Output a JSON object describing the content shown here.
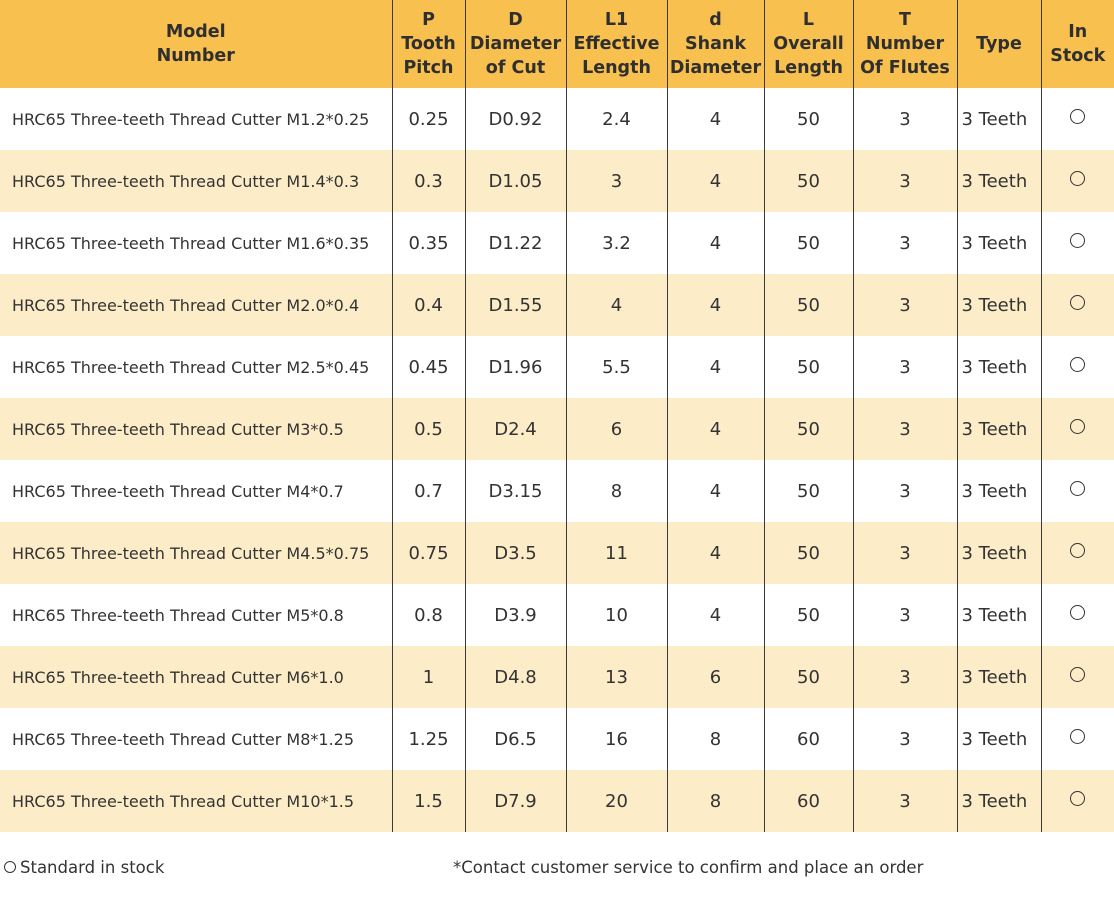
{
  "table": {
    "headers": [
      {
        "lines": [
          "Model",
          "Number"
        ]
      },
      {
        "lines": [
          "P",
          "Tooth",
          "Pitch"
        ]
      },
      {
        "lines": [
          "D",
          "Diameter",
          "of Cut"
        ]
      },
      {
        "lines": [
          "L1",
          "Effective",
          "Length"
        ]
      },
      {
        "lines": [
          "d",
          "Shank",
          "Diameter"
        ]
      },
      {
        "lines": [
          "L",
          "Overall",
          "Length"
        ]
      },
      {
        "lines": [
          "T",
          "Number",
          "Of Flutes"
        ]
      },
      {
        "lines": [
          "Type"
        ]
      },
      {
        "lines": [
          "In",
          "Stock"
        ]
      }
    ],
    "rows": [
      {
        "model": "HRC65 Three-teeth Thread Cutter M1.2*0.25",
        "pitch": "0.25",
        "diameter": "D0.92",
        "effective_length": "2.4",
        "shank": "4",
        "overall": "50",
        "flutes": "3",
        "type": "3 Teeth",
        "stock": "standard"
      },
      {
        "model": "HRC65 Three-teeth Thread Cutter M1.4*0.3",
        "pitch": "0.3",
        "diameter": "D1.05",
        "effective_length": "3",
        "shank": "4",
        "overall": "50",
        "flutes": "3",
        "type": "3 Teeth",
        "stock": "standard"
      },
      {
        "model": "HRC65 Three-teeth Thread Cutter M1.6*0.35",
        "pitch": "0.35",
        "diameter": "D1.22",
        "effective_length": "3.2",
        "shank": "4",
        "overall": "50",
        "flutes": "3",
        "type": "3 Teeth",
        "stock": "standard"
      },
      {
        "model": "HRC65 Three-teeth Thread Cutter M2.0*0.4",
        "pitch": "0.4",
        "diameter": "D1.55",
        "effective_length": "4",
        "shank": "4",
        "overall": "50",
        "flutes": "3",
        "type": "3 Teeth",
        "stock": "standard"
      },
      {
        "model": "HRC65 Three-teeth Thread Cutter M2.5*0.45",
        "pitch": "0.45",
        "diameter": "D1.96",
        "effective_length": "5.5",
        "shank": "4",
        "overall": "50",
        "flutes": "3",
        "type": "3 Teeth",
        "stock": "standard"
      },
      {
        "model": "HRC65 Three-teeth Thread Cutter M3*0.5",
        "pitch": "0.5",
        "diameter": "D2.4",
        "effective_length": "6",
        "shank": "4",
        "overall": "50",
        "flutes": "3",
        "type": "3 Teeth",
        "stock": "standard"
      },
      {
        "model": "HRC65 Three-teeth Thread Cutter M4*0.7",
        "pitch": "0.7",
        "diameter": "D3.15",
        "effective_length": "8",
        "shank": "4",
        "overall": "50",
        "flutes": "3",
        "type": "3 Teeth",
        "stock": "standard"
      },
      {
        "model": "HRC65 Three-teeth Thread Cutter M4.5*0.75",
        "pitch": "0.75",
        "diameter": "D3.5",
        "effective_length": "11",
        "shank": "4",
        "overall": "50",
        "flutes": "3",
        "type": "3 Teeth",
        "stock": "standard"
      },
      {
        "model": "HRC65 Three-teeth Thread Cutter M5*0.8",
        "pitch": "0.8",
        "diameter": "D3.9",
        "effective_length": "10",
        "shank": "4",
        "overall": "50",
        "flutes": "3",
        "type": "3 Teeth",
        "stock": "standard"
      },
      {
        "model": "HRC65 Three-teeth Thread Cutter M6*1.0",
        "pitch": "1",
        "diameter": "D4.8",
        "effective_length": "13",
        "shank": "6",
        "overall": "50",
        "flutes": "3",
        "type": "3 Teeth",
        "stock": "standard"
      },
      {
        "model": "HRC65 Three-teeth Thread Cutter M8*1.25",
        "pitch": "1.25",
        "diameter": "D6.5",
        "effective_length": "16",
        "shank": "8",
        "overall": "60",
        "flutes": "3",
        "type": "3 Teeth",
        "stock": "standard"
      },
      {
        "model": "HRC65 Three-teeth Thread Cutter M10*1.5",
        "pitch": "1.5",
        "diameter": "D7.9",
        "effective_length": "20",
        "shank": "8",
        "overall": "60",
        "flutes": "3",
        "type": "3 Teeth",
        "stock": "standard"
      }
    ]
  },
  "footer": {
    "legend_text": "Standard in stock",
    "note": "*Contact customer service to confirm and place an order"
  },
  "colors": {
    "header_bg": "#f8c04f",
    "stripe_bg": "#fdecc8",
    "row_bg": "#ffffff"
  },
  "icons": {
    "stock_symbol": "circle-outline-icon"
  }
}
